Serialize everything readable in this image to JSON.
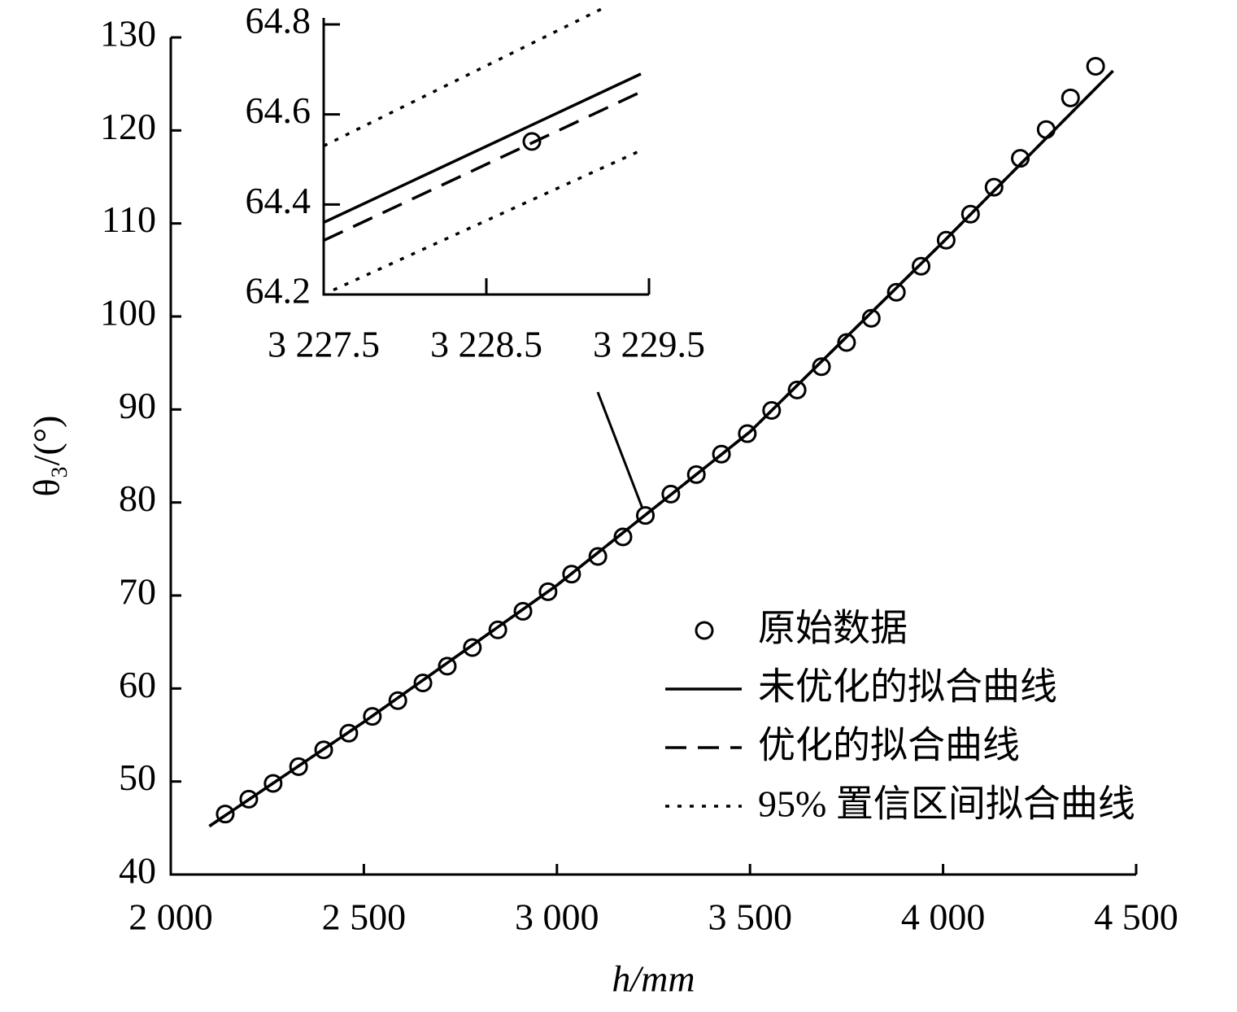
{
  "chart_data": [
    {
      "type": "line",
      "x_label": "h/mm",
      "y_label": "θ₃/(°)",
      "xlim": [
        2000,
        4500
      ],
      "ylim": [
        40,
        130
      ],
      "xticks": [
        {
          "value": 2000,
          "label": "2 000"
        },
        {
          "value": 2500,
          "label": "2 500"
        },
        {
          "value": 3000,
          "label": "3 000"
        },
        {
          "value": 3500,
          "label": "3 500"
        },
        {
          "value": 4000,
          "label": "4 000"
        },
        {
          "value": 4500,
          "label": "4 500"
        }
      ],
      "yticks": [
        40,
        50,
        60,
        70,
        80,
        90,
        100,
        110,
        120,
        130
      ],
      "legend": "lower right",
      "series": [
        {
          "name": "原始数据",
          "style": "marker",
          "color": "#000000",
          "x": [
            2141,
            2202,
            2265,
            2331,
            2396,
            2461,
            2522,
            2588,
            2653,
            2716,
            2781,
            2847,
            2912,
            2977,
            3038,
            3106,
            3171,
            3229,
            3295,
            3361,
            3426,
            3493,
            3556,
            3622,
            3685,
            3750,
            3814,
            3879,
            3943,
            4008,
            4071,
            4132,
            4200,
            4267,
            4330,
            4395
          ],
          "values": [
            46.5,
            48.1,
            49.8,
            51.6,
            53.4,
            55.2,
            57.0,
            58.7,
            60.6,
            62.4,
            64.4,
            66.3,
            68.3,
            70.4,
            72.3,
            74.2,
            76.3,
            78.6,
            80.9,
            83.0,
            85.2,
            87.4,
            89.9,
            92.1,
            94.6,
            97.2,
            99.8,
            102.6,
            105.4,
            108.2,
            111.0,
            113.9,
            117.0,
            120.1,
            123.5,
            126.9
          ]
        },
        {
          "name": "未优化的拟合曲线",
          "style": "solid",
          "color": "#000000",
          "x": [
            2100,
            2500,
            3000,
            3500,
            4000,
            4440
          ],
          "values": [
            45.2,
            56.4,
            71.1,
            87.6,
            108.0,
            126.4
          ]
        },
        {
          "name": "优化的拟合曲线",
          "style": "dashed",
          "color": "#000000",
          "x": [
            2100,
            2500,
            3000,
            3500,
            4000,
            4440
          ],
          "values": [
            45.2,
            56.4,
            71.1,
            87.6,
            108.0,
            126.4
          ]
        },
        {
          "name": "95% 置信区间拟合曲线",
          "style": "dotted",
          "color": "#000000",
          "x": [
            2100,
            2500,
            3000,
            3500,
            4000,
            4440
          ],
          "values": [
            45.2,
            56.4,
            71.1,
            87.6,
            108.0,
            126.4
          ]
        }
      ]
    },
    {
      "type": "line",
      "xlim": [
        3227.5,
        3229.5
      ],
      "ylim": [
        64.2,
        64.8
      ],
      "xticks": [
        {
          "value": 3227.5,
          "label": "3 227.5"
        },
        {
          "value": 3228.5,
          "label": "3 228.5"
        },
        {
          "value": 3229.5,
          "label": "3 229.5"
        }
      ],
      "yticks": [
        64.2,
        64.4,
        64.6,
        64.8
      ],
      "series": [
        {
          "style": "marker",
          "color": "#000000",
          "x": [
            3228.78
          ],
          "values": [
            64.54
          ]
        },
        {
          "style": "solid",
          "color": "#000000",
          "x": [
            3227.5,
            3229.45
          ],
          "values": [
            64.36,
            64.69
          ]
        },
        {
          "style": "dashed",
          "color": "#000000",
          "x": [
            3227.5,
            3229.45
          ],
          "values": [
            64.32,
            64.65
          ]
        },
        {
          "style": "dotted",
          "color": "#000000",
          "x": [
            3227.5,
            3229.24
          ],
          "values": [
            64.53,
            64.84
          ]
        },
        {
          "style": "dotted",
          "color": "#000000",
          "x": [
            3227.56,
            3229.45
          ],
          "values": [
            64.21,
            64.52
          ]
        }
      ]
    }
  ]
}
